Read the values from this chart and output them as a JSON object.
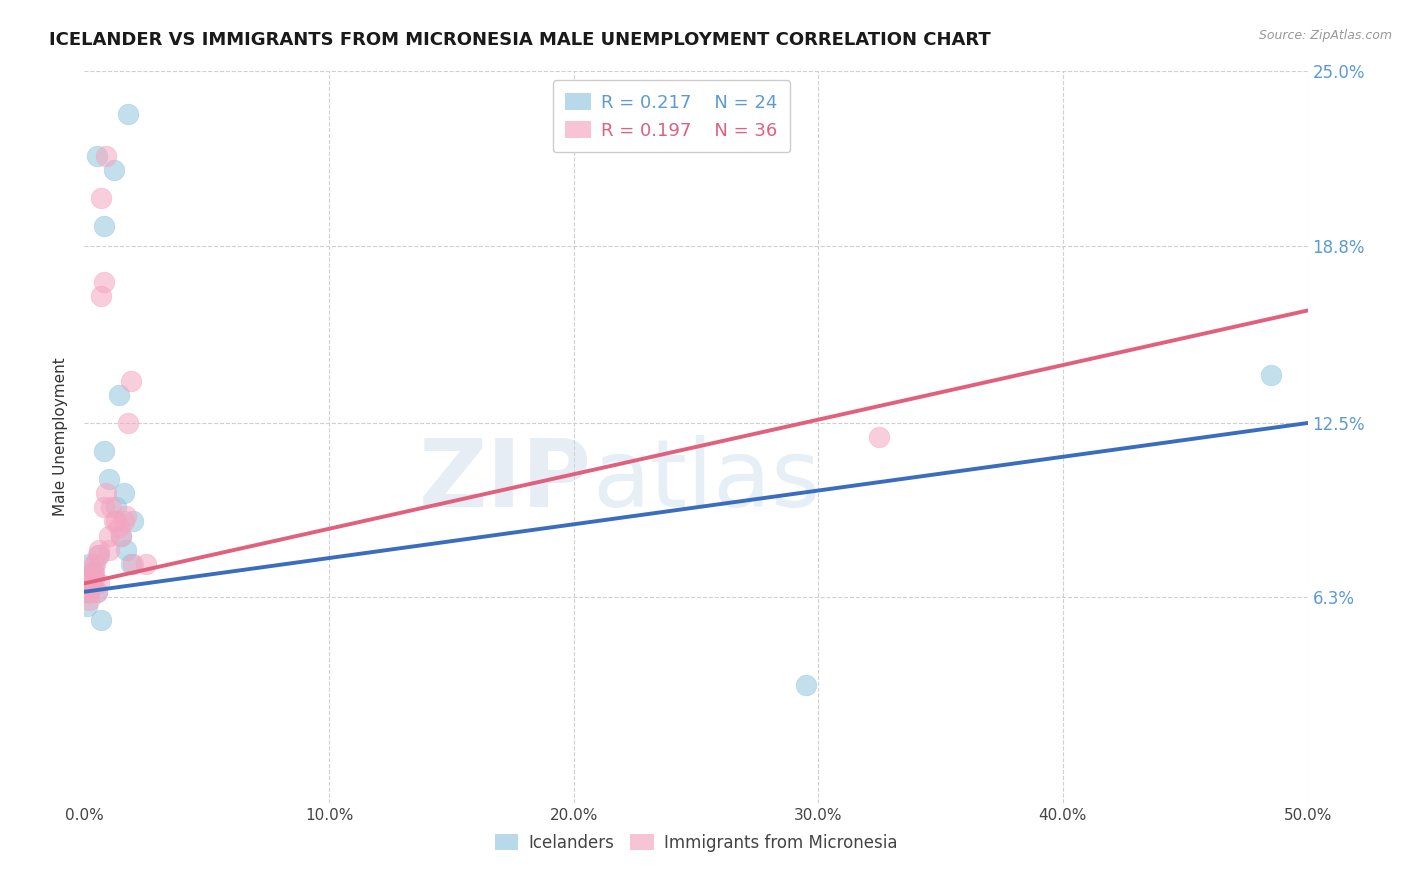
{
  "title": "ICELANDER VS IMMIGRANTS FROM MICRONESIA MALE UNEMPLOYMENT CORRELATION CHART",
  "source": "Source: ZipAtlas.com",
  "ylabel": "Male Unemployment",
  "xlim": [
    0.0,
    50.0
  ],
  "ylim": [
    -1.0,
    25.0
  ],
  "ytick_vals": [
    6.3,
    12.5,
    18.8,
    25.0
  ],
  "ytick_labels": [
    "6.3%",
    "12.5%",
    "18.8%",
    "25.0%"
  ],
  "xtick_vals": [
    0.0,
    10.0,
    20.0,
    30.0,
    40.0,
    50.0
  ],
  "xtick_labels": [
    "0.0%",
    "10.0%",
    "20.0%",
    "30.0%",
    "40.0%",
    "50.0%"
  ],
  "blue_color": "#92c5de",
  "pink_color": "#f4a5c0",
  "blue_line_color": "#3b6dbf",
  "pink_line_color": "#e0607e",
  "blue_R": 0.217,
  "blue_N": 24,
  "pink_R": 0.197,
  "pink_N": 36,
  "blue_label": "Icelanders",
  "pink_label": "Immigrants from Micronesia",
  "blue_scatter_x": [
    0.5,
    1.8,
    0.8,
    1.2,
    0.2,
    0.15,
    0.1,
    0.2,
    0.3,
    0.4,
    0.5,
    0.6,
    0.7,
    0.8,
    1.0,
    1.3,
    1.5,
    1.7,
    1.9,
    2.0,
    1.6,
    1.4,
    29.5,
    48.5
  ],
  "blue_scatter_y": [
    22.0,
    23.5,
    19.5,
    21.5,
    7.5,
    6.5,
    6.0,
    7.0,
    6.8,
    7.2,
    6.5,
    7.8,
    5.5,
    11.5,
    10.5,
    9.5,
    8.5,
    8.0,
    7.5,
    9.0,
    10.0,
    13.5,
    3.2,
    14.2
  ],
  "pink_scatter_x": [
    0.1,
    0.1,
    0.2,
    0.2,
    0.3,
    0.3,
    0.4,
    0.4,
    0.5,
    0.6,
    0.6,
    0.7,
    0.8,
    0.9,
    1.0,
    1.0,
    1.1,
    1.2,
    1.3,
    1.4,
    1.5,
    1.6,
    1.7,
    1.8,
    1.9,
    2.0,
    2.5,
    0.7,
    0.8,
    0.9,
    32.5,
    0.15,
    0.25,
    0.35,
    0.45,
    0.55
  ],
  "pink_scatter_y": [
    6.8,
    6.5,
    6.2,
    6.5,
    7.0,
    6.8,
    7.5,
    7.0,
    6.5,
    8.0,
    6.8,
    20.5,
    9.5,
    10.0,
    8.5,
    8.0,
    9.5,
    9.0,
    9.0,
    8.8,
    8.5,
    9.0,
    9.2,
    12.5,
    14.0,
    7.5,
    7.5,
    17.0,
    17.5,
    22.0,
    12.0,
    6.5,
    6.8,
    7.2,
    7.5,
    7.8
  ],
  "blue_line_x0": 0.0,
  "blue_line_y0": 6.5,
  "blue_line_x1": 50.0,
  "blue_line_y1": 12.5,
  "pink_line_x0": 0.0,
  "pink_line_y0": 6.8,
  "pink_line_x1": 50.0,
  "pink_line_y1": 16.5,
  "dashed_x0": 32.0,
  "dashed_x1": 49.0,
  "background_color": "#ffffff",
  "grid_color": "#d0d0d0",
  "watermark_text": "ZIP",
  "watermark_text2": "atlas",
  "title_fontsize": 13,
  "ylabel_fontsize": 11,
  "tick_fontsize": 11,
  "legend_fontsize": 13
}
